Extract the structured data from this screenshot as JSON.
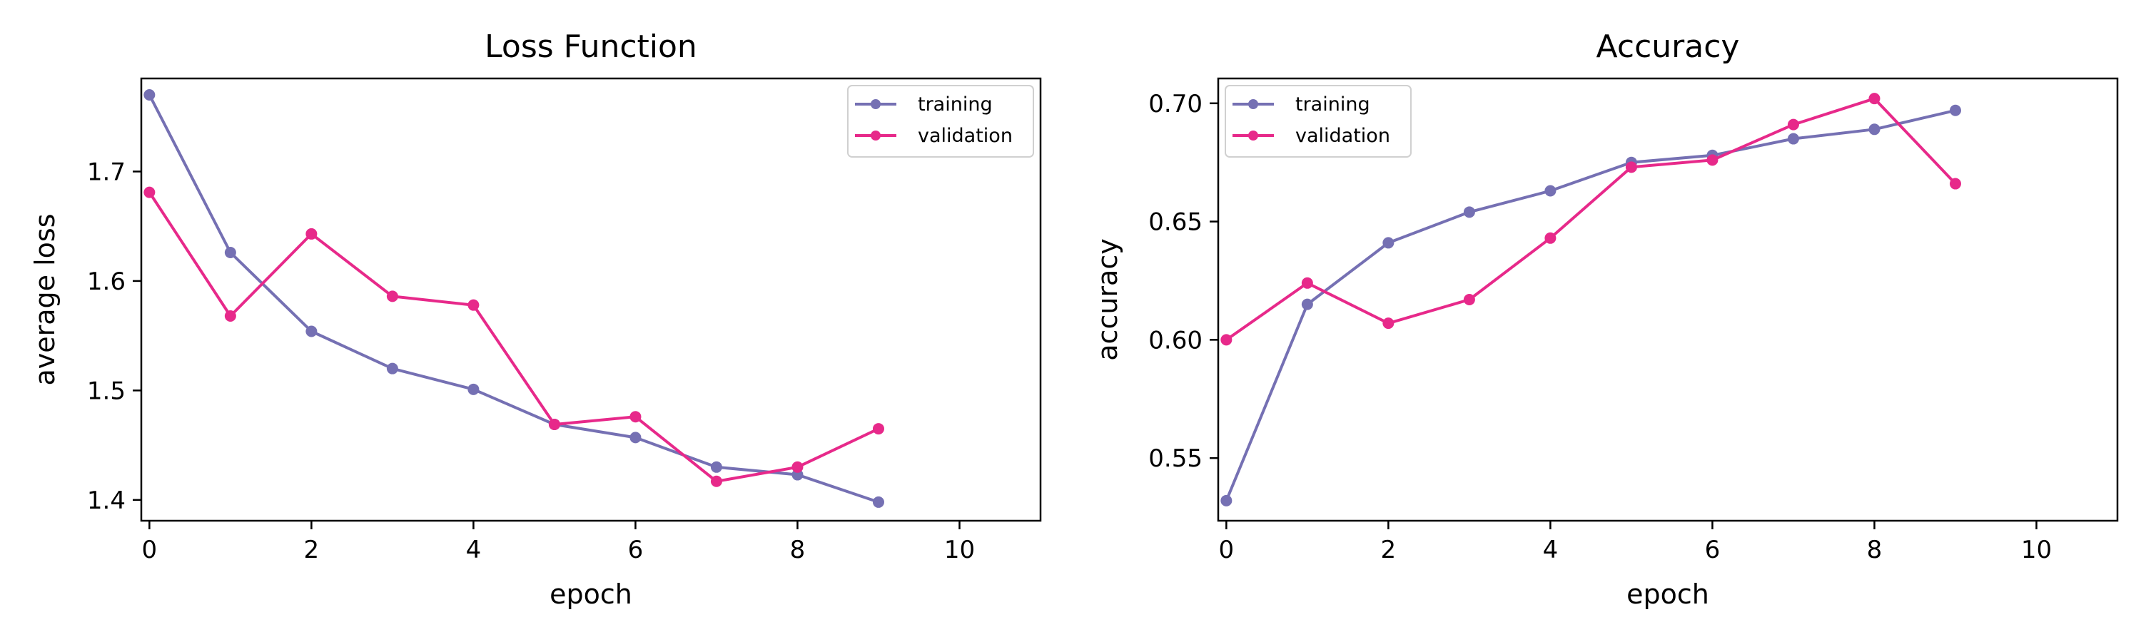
{
  "chart_data": [
    {
      "type": "line",
      "title": "Loss Function",
      "xlabel": "epoch",
      "ylabel": "average loss",
      "xlim": [
        -0.1,
        11
      ],
      "ylim": [
        1.381,
        1.785
      ],
      "xticks": [
        0,
        2,
        4,
        6,
        8,
        10
      ],
      "xtick_labels": [
        "0",
        "2",
        "4",
        "6",
        "8",
        "10"
      ],
      "yticks": [
        1.4,
        1.5,
        1.6,
        1.7
      ],
      "ytick_labels": [
        "1.4",
        "1.5",
        "1.6",
        "1.7"
      ],
      "legend_position": "top-right",
      "grid": false,
      "x": [
        0,
        1,
        2,
        3,
        4,
        5,
        6,
        7,
        8,
        9
      ],
      "series": [
        {
          "name": "training",
          "color": "#7570b3",
          "values": [
            1.77,
            1.626,
            1.554,
            1.52,
            1.501,
            1.469,
            1.457,
            1.43,
            1.423,
            1.398
          ]
        },
        {
          "name": "validation",
          "color": "#e7298a",
          "values": [
            1.681,
            1.568,
            1.643,
            1.586,
            1.578,
            1.469,
            1.476,
            1.417,
            1.43,
            1.465
          ]
        }
      ]
    },
    {
      "type": "line",
      "title": "Accuracy",
      "xlabel": "epoch",
      "ylabel": "accuracy",
      "xlim": [
        -0.1,
        11
      ],
      "ylim": [
        0.5235,
        0.7105
      ],
      "xticks": [
        0,
        2,
        4,
        6,
        8,
        10
      ],
      "xtick_labels": [
        "0",
        "2",
        "4",
        "6",
        "8",
        "10"
      ],
      "yticks": [
        0.55,
        0.6,
        0.65,
        0.7
      ],
      "ytick_labels": [
        "0.55",
        "0.60",
        "0.65",
        "0.70"
      ],
      "legend_position": "top-left",
      "grid": false,
      "x": [
        0,
        1,
        2,
        3,
        4,
        5,
        6,
        7,
        8,
        9
      ],
      "series": [
        {
          "name": "training",
          "color": "#7570b3",
          "values": [
            0.532,
            0.615,
            0.641,
            0.654,
            0.663,
            0.675,
            0.678,
            0.685,
            0.689,
            0.697
          ]
        },
        {
          "name": "validation",
          "color": "#e7298a",
          "values": [
            0.6,
            0.624,
            0.607,
            0.617,
            0.643,
            0.673,
            0.676,
            0.691,
            0.702,
            0.666
          ]
        }
      ]
    }
  ]
}
